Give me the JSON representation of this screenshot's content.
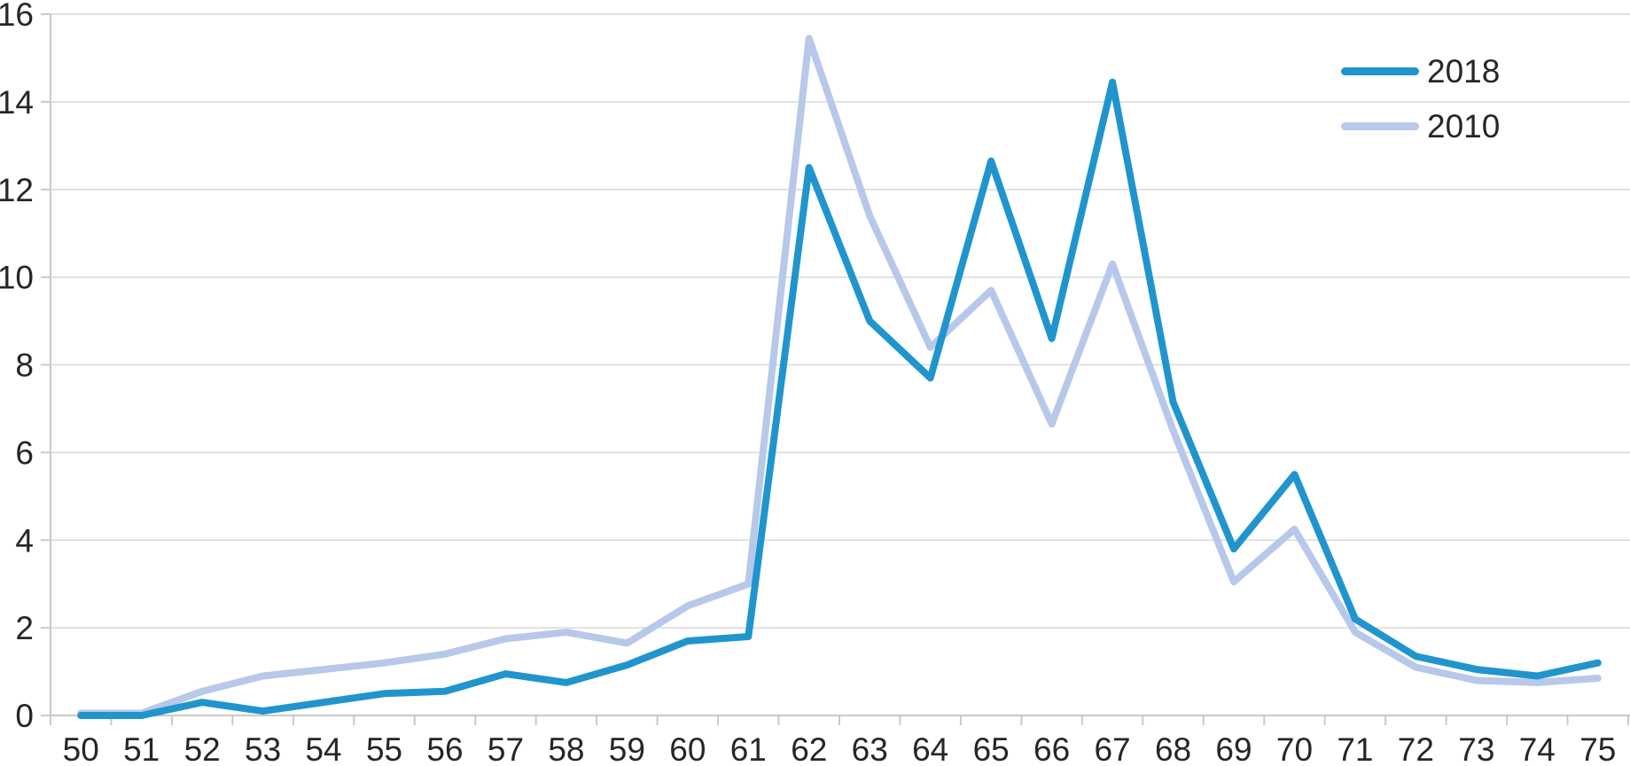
{
  "chart_data": {
    "type": "line",
    "title": "",
    "xlabel": "",
    "ylabel": "",
    "x": [
      50,
      51,
      52,
      53,
      54,
      55,
      56,
      57,
      58,
      59,
      60,
      61,
      62,
      63,
      64,
      65,
      66,
      67,
      68,
      69,
      70,
      71,
      72,
      73,
      74,
      75
    ],
    "ylim": [
      0,
      16
    ],
    "yticks": [
      0,
      2,
      4,
      6,
      8,
      10,
      12,
      14,
      16
    ],
    "grid": "horizontal",
    "legend_position": "top-right",
    "series": [
      {
        "name": "2018",
        "color": "#2095CD",
        "values": [
          0,
          0,
          0.3,
          0.1,
          0.3,
          0.5,
          0.55,
          0.95,
          0.75,
          1.15,
          1.7,
          1.8,
          12.5,
          9.0,
          7.7,
          12.65,
          8.6,
          14.45,
          7.15,
          3.8,
          5.5,
          2.2,
          1.35,
          1.05,
          0.9,
          1.2
        ]
      },
      {
        "name": "2010",
        "color": "#B7C8EA",
        "values": [
          0.05,
          0.05,
          0.55,
          0.9,
          1.05,
          1.2,
          1.4,
          1.75,
          1.9,
          1.65,
          2.5,
          3.0,
          15.45,
          11.4,
          8.4,
          9.7,
          6.65,
          10.3,
          6.5,
          3.05,
          4.25,
          1.9,
          1.1,
          0.8,
          0.75,
          0.85
        ]
      }
    ]
  },
  "colors": {
    "grid": "#D9D9D9",
    "axis": "#C9C9C9",
    "tick_text": "#262626",
    "background": "#FFFFFF"
  }
}
